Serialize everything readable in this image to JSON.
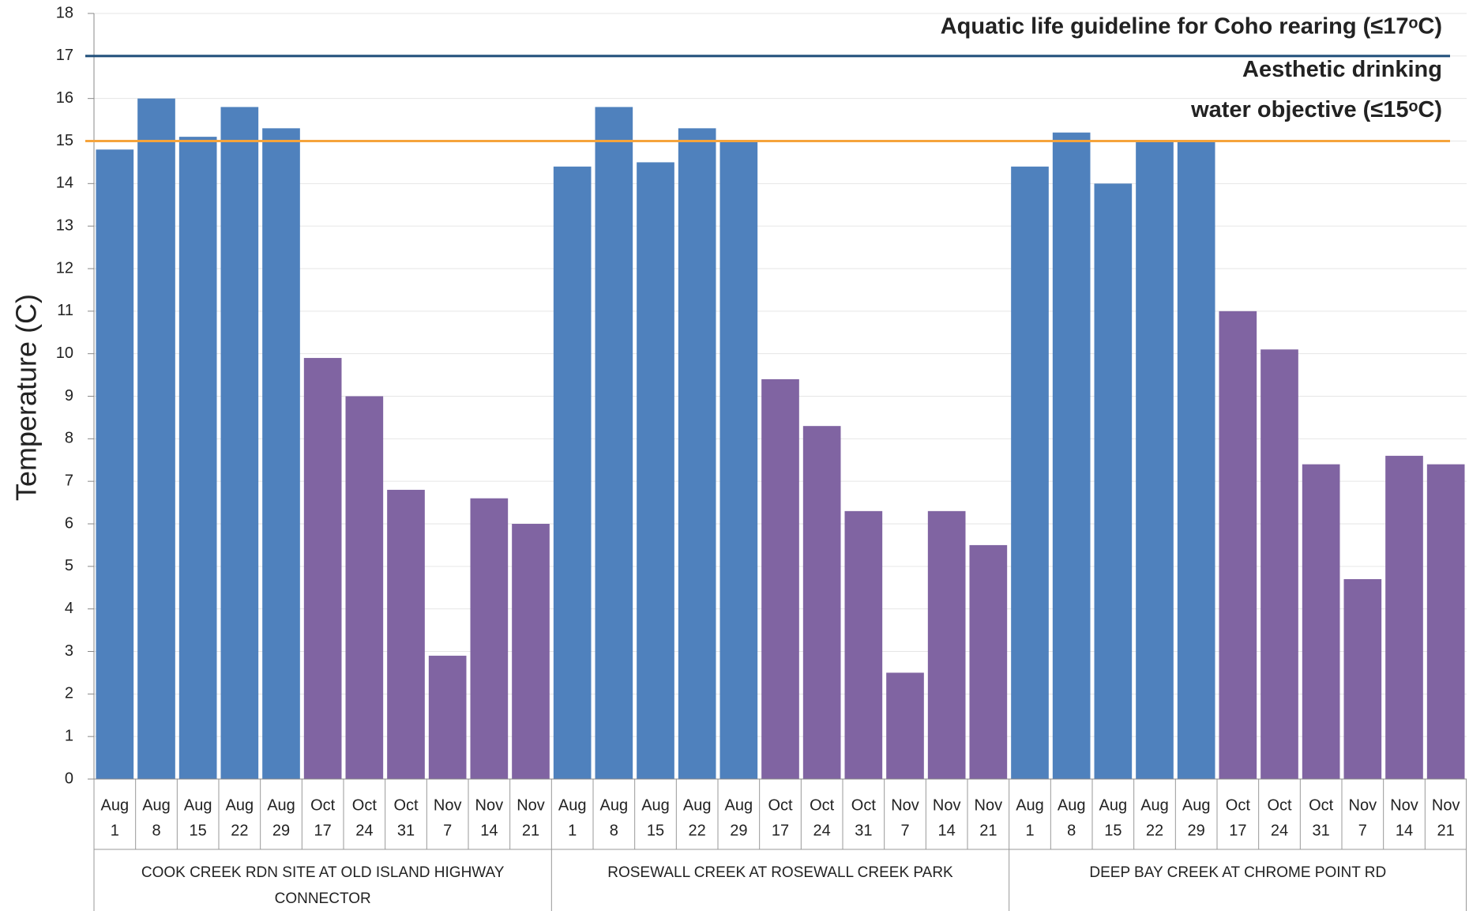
{
  "chart_data": {
    "type": "bar",
    "y_label": "Temperature (C)",
    "ylim": [
      0,
      18
    ],
    "yticks": [
      0,
      1,
      2,
      3,
      4,
      5,
      6,
      7,
      8,
      9,
      10,
      11,
      12,
      13,
      14,
      15,
      16,
      17,
      18
    ],
    "grid": true,
    "groups": [
      {
        "label": "COOK CREEK RDN SITE AT OLD ISLAND HIGHWAY CONNECTOR",
        "categories": [
          [
            "Aug",
            "1"
          ],
          [
            "Aug",
            "8"
          ],
          [
            "Aug",
            "15"
          ],
          [
            "Aug",
            "22"
          ],
          [
            "Aug",
            "29"
          ],
          [
            "Oct",
            "17"
          ],
          [
            "Oct",
            "24"
          ],
          [
            "Oct",
            "31"
          ],
          [
            "Nov",
            "7"
          ],
          [
            "Nov",
            "14"
          ],
          [
            "Nov",
            "21"
          ]
        ],
        "values": [
          14.8,
          16.0,
          15.1,
          15.8,
          15.3,
          9.9,
          9.0,
          6.8,
          2.9,
          6.6,
          6.0
        ],
        "colors": [
          "#4f81bd",
          "#4f81bd",
          "#4f81bd",
          "#4f81bd",
          "#4f81bd",
          "#8064a2",
          "#8064a2",
          "#8064a2",
          "#8064a2",
          "#8064a2",
          "#8064a2"
        ]
      },
      {
        "label": "ROSEWALL CREEK AT ROSEWALL CREEK PARK",
        "categories": [
          [
            "Aug",
            "1"
          ],
          [
            "Aug",
            "8"
          ],
          [
            "Aug",
            "15"
          ],
          [
            "Aug",
            "22"
          ],
          [
            "Aug",
            "29"
          ],
          [
            "Oct",
            "17"
          ],
          [
            "Oct",
            "24"
          ],
          [
            "Oct",
            "31"
          ],
          [
            "Nov",
            "7"
          ],
          [
            "Nov",
            "14"
          ],
          [
            "Nov",
            "21"
          ]
        ],
        "values": [
          14.4,
          15.8,
          14.5,
          15.3,
          15.0,
          9.4,
          8.3,
          6.3,
          2.5,
          6.3,
          5.5
        ],
        "colors": [
          "#4f81bd",
          "#4f81bd",
          "#4f81bd",
          "#4f81bd",
          "#4f81bd",
          "#8064a2",
          "#8064a2",
          "#8064a2",
          "#8064a2",
          "#8064a2",
          "#8064a2"
        ]
      },
      {
        "label": "DEEP BAY CREEK AT CHROME POINT RD",
        "categories": [
          [
            "Aug",
            "1"
          ],
          [
            "Aug",
            "8"
          ],
          [
            "Aug",
            "15"
          ],
          [
            "Aug",
            "22"
          ],
          [
            "Aug",
            "29"
          ],
          [
            "Oct",
            "17"
          ],
          [
            "Oct",
            "24"
          ],
          [
            "Oct",
            "31"
          ],
          [
            "Nov",
            "7"
          ],
          [
            "Nov",
            "14"
          ],
          [
            "Nov",
            "21"
          ]
        ],
        "values": [
          14.4,
          15.2,
          14.0,
          15.0,
          15.0,
          11.0,
          10.1,
          7.4,
          4.7,
          7.6,
          7.4
        ],
        "colors": [
          "#4f81bd",
          "#4f81bd",
          "#4f81bd",
          "#4f81bd",
          "#4f81bd",
          "#8064a2",
          "#8064a2",
          "#8064a2",
          "#8064a2",
          "#8064a2",
          "#8064a2"
        ]
      }
    ],
    "reference_lines": [
      {
        "value": 17,
        "label": [
          "Aquatic life guideline for Coho rearing (≤17ᵒC)"
        ],
        "color": "#1f4e79"
      },
      {
        "value": 15,
        "label": [
          "Aesthetic drinking",
          "water objective (≤15ᵒC)"
        ],
        "color": "#f5a43c"
      }
    ]
  }
}
